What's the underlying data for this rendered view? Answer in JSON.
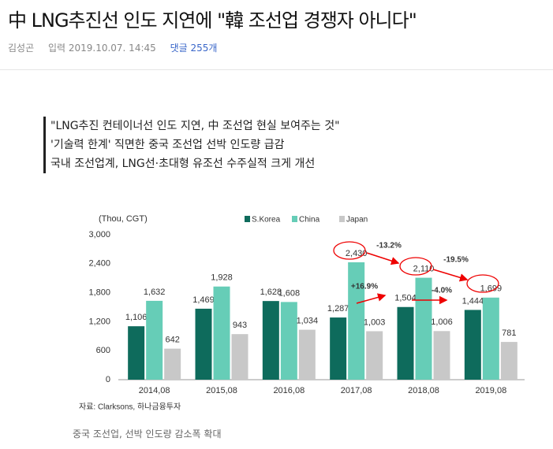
{
  "header": {
    "title": "中 LNG추진선 인도 지연에 \"韓 조선업 경쟁자 아니다\"",
    "author": "김성곤",
    "date": "입력 2019.10.07. 14:45",
    "comments": "댓글 255개"
  },
  "summary": [
    "\"LNG추진 컨테이너선 인도 지연, 中 조선업 현실 보여주는 것\"",
    "'기술력 한계' 직면한 중국 조선업 선박 인도량 급감",
    "국내 조선업계, LNG선·초대형 유조선 수주실적 크게 개선"
  ],
  "chart_data": {
    "type": "bar",
    "y_label": "(Thou, CGT)",
    "categories": [
      "2014,08",
      "2015,08",
      "2016,08",
      "2017,08",
      "2018,08",
      "2019,08"
    ],
    "series": [
      {
        "name": "S.Korea",
        "color": "#0e6b5c",
        "values": [
          1106,
          1469,
          1628,
          1287,
          1504,
          1444
        ],
        "value_labels": [
          "1,106",
          "1,469",
          "1,628",
          "1,287",
          "1,504",
          "1,444"
        ]
      },
      {
        "name": "China",
        "color": "#66cdb7",
        "values": [
          1632,
          1928,
          1608,
          2430,
          2110,
          1699
        ],
        "value_labels": [
          "1,632",
          "1,928",
          "1,608",
          "2,430",
          "2,110",
          "1,699"
        ]
      },
      {
        "name": "Japan",
        "color": "#c8c8c8",
        "values": [
          642,
          943,
          1034,
          1003,
          1006,
          781
        ],
        "value_labels": [
          "642",
          "943",
          "1,034",
          "1,003",
          "1,006",
          "781"
        ]
      }
    ],
    "ylim": [
      0,
      3000
    ],
    "yticks": [
      0,
      600,
      {
        "value": 1200,
        "label": "1,200"
      },
      {
        "value": 1800,
        "label": "1,800"
      },
      {
        "value": 2400,
        "label": "2,400"
      },
      {
        "value": 3000,
        "label": "3,000"
      }
    ],
    "annotations": [
      "-13.2%",
      "-19.5%",
      "+16.9%",
      "-4.0%"
    ],
    "source": "자료: Clarksons, 하나금융투자"
  },
  "caption": "중국 조선업, 선박 인도량 감소폭 확대"
}
